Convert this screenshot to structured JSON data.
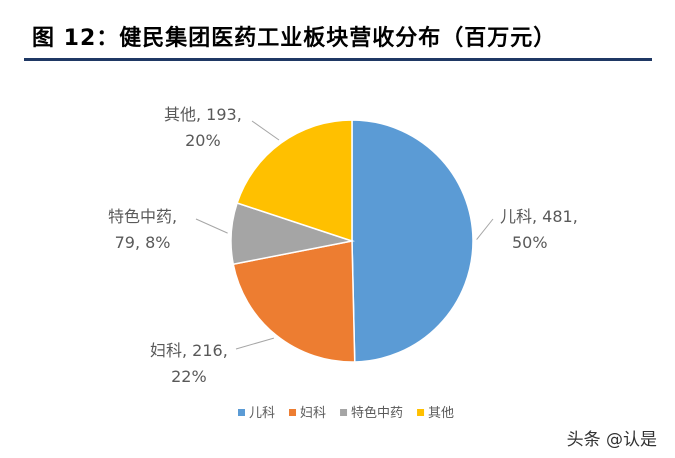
{
  "title": "图 12：健民集团医药工业板块营收分布（百万元）",
  "watermark": "头条 @认是",
  "chart_data": {
    "type": "pie",
    "categories": [
      "儿科",
      "妇科",
      "特色中药",
      "其他"
    ],
    "values": [
      481,
      216,
      79,
      193
    ],
    "percents": [
      "50%",
      "22%",
      "8%",
      "20%"
    ],
    "colors": [
      "#5b9bd5",
      "#ed7d31",
      "#a5a5a5",
      "#ffc000"
    ],
    "labels": [
      {
        "line1": "儿科, 481,",
        "line2": "50%"
      },
      {
        "line1": "妇科, 216,",
        "line2": "22%"
      },
      {
        "line1": "特色中药,",
        "line2": "79, 8%"
      },
      {
        "line1": "其他, 193,",
        "line2": "20%"
      }
    ],
    "legend": [
      "儿科",
      "妇科",
      "特色中药",
      "其他"
    ],
    "legend_position": "bottom"
  }
}
